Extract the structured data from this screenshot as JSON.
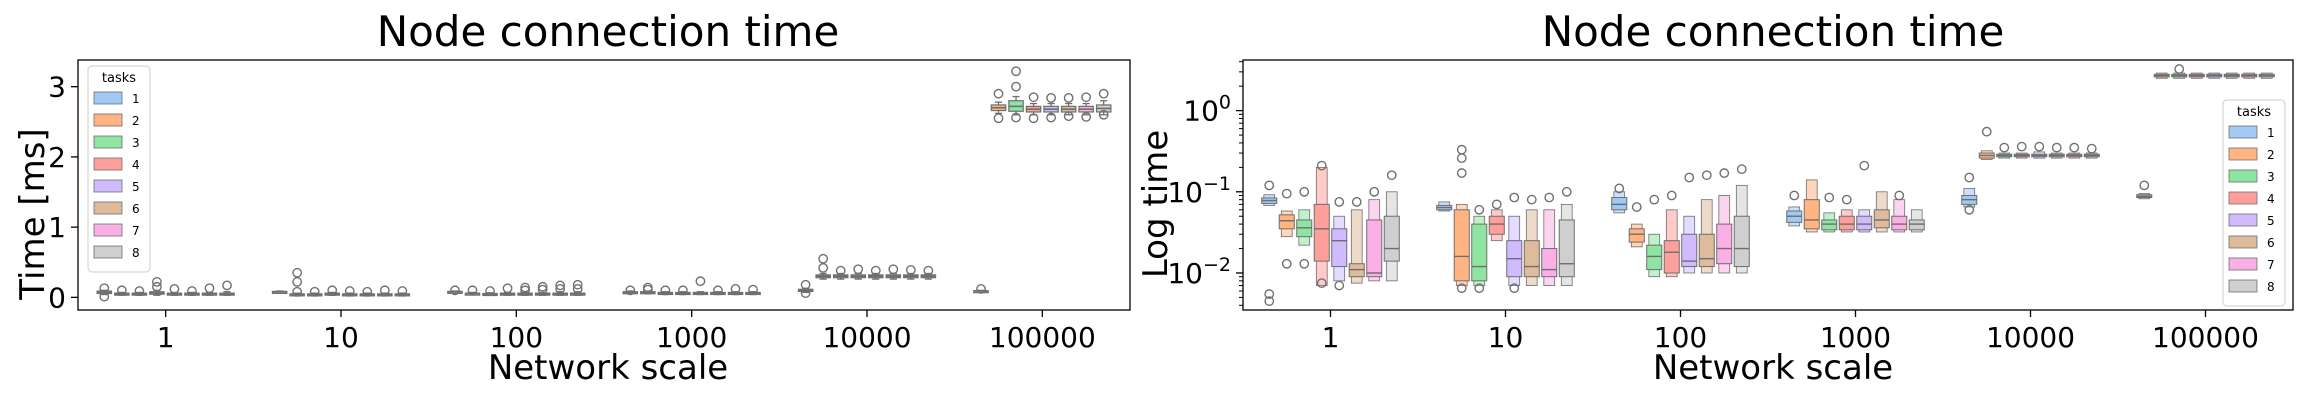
{
  "colors": {
    "1": "#a1c9f4",
    "2": "#ffb482",
    "3": "#8de5a1",
    "4": "#ff9f9b",
    "5": "#d0bbff",
    "6": "#debb9b",
    "7": "#fab0e4",
    "8": "#cfcfcf",
    "median": "#6e6e6e",
    "flier": "#707070",
    "axis": "#000000"
  },
  "chart_data": [
    {
      "type": "boxplot",
      "title": "Node connection time",
      "xlabel": "Network scale",
      "ylabel": "Time [ms]",
      "yscale": "linear",
      "ylim": [
        -0.18,
        3.38
      ],
      "yticks": [
        0,
        1,
        2,
        3
      ],
      "ytick_labels": [
        "0",
        "1",
        "2",
        "3"
      ],
      "categories": [
        "1",
        "10",
        "100",
        "1000",
        "10000",
        "100000"
      ],
      "legend": {
        "title": "tasks",
        "entries": [
          "1",
          "2",
          "3",
          "4",
          "5",
          "6",
          "7",
          "8"
        ],
        "placement": "upper left"
      },
      "boxes": [
        [
          [
            0.04,
            0.055,
            0.07,
            0.09,
            0.1,
            [
              0.13,
              0.01
            ]
          ],
          [
            0.03,
            0.04,
            0.05,
            0.06,
            0.07,
            [
              0.1
            ]
          ],
          [
            0.03,
            0.04,
            0.05,
            0.06,
            0.07,
            [
              0.09
            ]
          ],
          [
            0.03,
            0.045,
            0.06,
            0.08,
            0.1,
            [
              0.22,
              0.15
            ]
          ],
          [
            0.03,
            0.04,
            0.05,
            0.06,
            0.07,
            [
              0.12
            ]
          ],
          [
            0.03,
            0.04,
            0.05,
            0.06,
            0.07,
            [
              0.09
            ]
          ],
          [
            0.03,
            0.04,
            0.05,
            0.06,
            0.07,
            [
              0.13
            ]
          ],
          [
            0.03,
            0.04,
            0.05,
            0.06,
            0.08,
            [
              0.17
            ]
          ]
        ],
        [
          [
            0.07,
            0.075,
            0.08,
            0.085,
            0.09,
            []
          ],
          [
            0.02,
            0.03,
            0.04,
            0.05,
            0.06,
            [
              0.35,
              0.22,
              0.08
            ]
          ],
          [
            0.02,
            0.03,
            0.04,
            0.05,
            0.06,
            [
              0.08
            ]
          ],
          [
            0.03,
            0.04,
            0.05,
            0.06,
            0.07,
            [
              0.1
            ]
          ],
          [
            0.02,
            0.03,
            0.04,
            0.05,
            0.06,
            [
              0.09
            ]
          ],
          [
            0.02,
            0.03,
            0.04,
            0.05,
            0.06,
            [
              0.08
            ]
          ],
          [
            0.02,
            0.03,
            0.04,
            0.05,
            0.06,
            [
              0.1
            ]
          ],
          [
            0.02,
            0.03,
            0.04,
            0.05,
            0.06,
            [
              0.09
            ]
          ]
        ],
        [
          [
            0.07,
            0.075,
            0.08,
            0.085,
            0.09,
            [
              0.1
            ]
          ],
          [
            0.04,
            0.05,
            0.055,
            0.06,
            0.07,
            [
              0.1
            ]
          ],
          [
            0.03,
            0.04,
            0.045,
            0.055,
            0.065,
            [
              0.09
            ]
          ],
          [
            0.03,
            0.04,
            0.045,
            0.06,
            0.07,
            [
              0.13
            ]
          ],
          [
            0.03,
            0.04,
            0.045,
            0.06,
            0.07,
            [
              0.14,
              0.1
            ]
          ],
          [
            0.03,
            0.04,
            0.045,
            0.06,
            0.07,
            [
              0.15,
              0.11
            ]
          ],
          [
            0.03,
            0.04,
            0.05,
            0.06,
            0.08,
            [
              0.17,
              0.12
            ]
          ],
          [
            0.03,
            0.04,
            0.05,
            0.06,
            0.08,
            [
              0.18,
              0.12
            ]
          ]
        ],
        [
          [
            0.05,
            0.06,
            0.07,
            0.08,
            0.09,
            [
              0.1
            ]
          ],
          [
            0.05,
            0.06,
            0.07,
            0.08,
            0.09,
            [
              0.14,
              0.11
            ]
          ],
          [
            0.04,
            0.05,
            0.06,
            0.07,
            0.08,
            [
              0.1
            ]
          ],
          [
            0.04,
            0.05,
            0.06,
            0.07,
            0.08,
            [
              0.1
            ]
          ],
          [
            0.04,
            0.05,
            0.06,
            0.07,
            0.08,
            [
              0.23
            ]
          ],
          [
            0.04,
            0.05,
            0.06,
            0.07,
            0.08,
            [
              0.1
            ]
          ],
          [
            0.04,
            0.05,
            0.06,
            0.07,
            0.08,
            [
              0.12
            ]
          ],
          [
            0.04,
            0.05,
            0.06,
            0.07,
            0.08,
            [
              0.11
            ]
          ]
        ],
        [
          [
            0.07,
            0.085,
            0.1,
            0.115,
            0.13,
            [
              0.18,
              0.06
            ]
          ],
          [
            0.26,
            0.28,
            0.3,
            0.32,
            0.34,
            [
              0.55,
              0.42
            ]
          ],
          [
            0.26,
            0.28,
            0.3,
            0.32,
            0.34,
            [
              0.38
            ]
          ],
          [
            0.26,
            0.28,
            0.3,
            0.32,
            0.34,
            [
              0.4
            ]
          ],
          [
            0.26,
            0.28,
            0.3,
            0.32,
            0.34,
            [
              0.38
            ]
          ],
          [
            0.26,
            0.28,
            0.3,
            0.32,
            0.34,
            [
              0.4
            ]
          ],
          [
            0.26,
            0.28,
            0.3,
            0.32,
            0.34,
            [
              0.39
            ]
          ],
          [
            0.26,
            0.28,
            0.3,
            0.32,
            0.34,
            [
              0.38
            ]
          ]
        ],
        [
          [
            0.08,
            0.085,
            0.09,
            0.095,
            0.1,
            [
              0.12
            ]
          ],
          [
            2.62,
            2.66,
            2.7,
            2.74,
            2.78,
            [
              2.9,
              2.55
            ]
          ],
          [
            2.6,
            2.65,
            2.72,
            2.8,
            2.86,
            [
              3.22,
              3.0,
              2.56
            ]
          ],
          [
            2.6,
            2.64,
            2.68,
            2.72,
            2.76,
            [
              2.85,
              2.55
            ]
          ],
          [
            2.6,
            2.64,
            2.68,
            2.72,
            2.76,
            [
              2.84,
              2.56
            ]
          ],
          [
            2.6,
            2.64,
            2.68,
            2.72,
            2.76,
            [
              2.84,
              2.58
            ]
          ],
          [
            2.6,
            2.64,
            2.68,
            2.72,
            2.76,
            [
              2.85,
              2.57
            ]
          ],
          [
            2.6,
            2.64,
            2.69,
            2.74,
            2.8,
            [
              2.9,
              2.6
            ]
          ]
        ]
      ]
    },
    {
      "type": "boxenplot",
      "title": "Node connection time",
      "xlabel": "Network scale",
      "ylabel": "Log time",
      "yscale": "log",
      "ylim": [
        0.0035,
        4.2
      ],
      "yticks": [
        0.01,
        0.1,
        1
      ],
      "ytick_labels": [
        "10−2",
        "10−1",
        "10⁰"
      ],
      "ytick_base": [
        "10",
        "10",
        "10"
      ],
      "ytick_exp": [
        "−2",
        "−1",
        "0"
      ],
      "categories": [
        "1",
        "10",
        "100",
        "1000",
        "10000",
        "100000"
      ],
      "legend": {
        "title": "tasks",
        "entries": [
          "1",
          "2",
          "3",
          "4",
          "5",
          "6",
          "7",
          "8"
        ],
        "placement": "center right"
      },
      "boxes": [
        [
          [
            0.068,
            0.072,
            0.078,
            0.084,
            0.092,
            [
              0.12,
              0.0055,
              0.0045
            ]
          ],
          [
            0.028,
            0.035,
            0.044,
            0.052,
            0.058,
            [
              0.095,
              0.013
            ]
          ],
          [
            0.022,
            0.028,
            0.036,
            0.045,
            0.06,
            [
              0.1,
              0.013
            ]
          ],
          [
            0.007,
            0.014,
            0.035,
            0.07,
            0.2,
            [
              0.21,
              0.0075
            ]
          ],
          [
            0.008,
            0.012,
            0.025,
            0.035,
            0.05,
            [
              0.075,
              0.007
            ]
          ],
          [
            0.0075,
            0.009,
            0.011,
            0.013,
            0.06,
            [
              0.075
            ]
          ],
          [
            0.008,
            0.009,
            0.01,
            0.045,
            0.08,
            [
              0.1
            ]
          ],
          [
            0.008,
            0.014,
            0.02,
            0.05,
            0.1,
            [
              0.16
            ]
          ]
        ],
        [
          [
            0.058,
            0.06,
            0.064,
            0.068,
            0.075,
            []
          ],
          [
            0.007,
            0.008,
            0.016,
            0.06,
            0.07,
            [
              0.33,
              0.26,
              0.17,
              0.0065
            ]
          ],
          [
            0.007,
            0.008,
            0.012,
            0.04,
            0.05,
            [
              0.06,
              0.0065
            ]
          ],
          [
            0.025,
            0.03,
            0.04,
            0.05,
            0.06,
            [
              0.07
            ]
          ],
          [
            0.007,
            0.009,
            0.015,
            0.025,
            0.05,
            [
              0.085,
              0.0065
            ]
          ],
          [
            0.007,
            0.009,
            0.012,
            0.025,
            0.06,
            [
              0.08
            ]
          ],
          [
            0.007,
            0.009,
            0.011,
            0.02,
            0.06,
            [
              0.085
            ]
          ],
          [
            0.007,
            0.009,
            0.013,
            0.045,
            0.07,
            [
              0.1
            ]
          ]
        ],
        [
          [
            0.055,
            0.06,
            0.07,
            0.085,
            0.1,
            [
              0.11
            ]
          ],
          [
            0.021,
            0.024,
            0.03,
            0.035,
            0.04,
            [
              0.065
            ]
          ],
          [
            0.009,
            0.011,
            0.016,
            0.022,
            0.03,
            [
              0.08
            ]
          ],
          [
            0.009,
            0.01,
            0.018,
            0.025,
            0.06,
            [
              0.09
            ]
          ],
          [
            0.01,
            0.012,
            0.014,
            0.03,
            0.05,
            [
              0.15
            ]
          ],
          [
            0.01,
            0.012,
            0.015,
            0.03,
            0.08,
            [
              0.16
            ]
          ],
          [
            0.01,
            0.013,
            0.02,
            0.04,
            0.09,
            [
              0.17
            ]
          ],
          [
            0.01,
            0.012,
            0.02,
            0.05,
            0.12,
            [
              0.19
            ]
          ]
        ],
        [
          [
            0.038,
            0.042,
            0.05,
            0.058,
            0.065,
            [
              0.09
            ]
          ],
          [
            0.032,
            0.035,
            0.045,
            0.08,
            0.14,
            []
          ],
          [
            0.032,
            0.034,
            0.04,
            0.045,
            0.055,
            [
              0.085
            ]
          ],
          [
            0.032,
            0.034,
            0.04,
            0.05,
            0.06,
            [
              0.08
            ]
          ],
          [
            0.032,
            0.034,
            0.04,
            0.05,
            0.06,
            [
              0.21
            ]
          ],
          [
            0.032,
            0.036,
            0.045,
            0.06,
            0.1,
            []
          ],
          [
            0.032,
            0.034,
            0.04,
            0.05,
            0.08,
            [
              0.09
            ]
          ],
          [
            0.032,
            0.034,
            0.04,
            0.045,
            0.06,
            []
          ]
        ],
        [
          [
            0.065,
            0.07,
            0.08,
            0.09,
            0.11,
            [
              0.15,
              0.06
            ]
          ],
          [
            0.25,
            0.26,
            0.28,
            0.3,
            0.32,
            [
              0.55
            ]
          ],
          [
            0.26,
            0.27,
            0.28,
            0.29,
            0.3,
            [
              0.35
            ]
          ],
          [
            0.26,
            0.27,
            0.28,
            0.29,
            0.3,
            [
              0.36
            ]
          ],
          [
            0.26,
            0.27,
            0.28,
            0.29,
            0.31,
            [
              0.36
            ]
          ],
          [
            0.26,
            0.27,
            0.28,
            0.29,
            0.3,
            [
              0.35
            ]
          ],
          [
            0.26,
            0.27,
            0.28,
            0.29,
            0.3,
            [
              0.35
            ]
          ],
          [
            0.26,
            0.27,
            0.28,
            0.29,
            0.3,
            [
              0.34
            ]
          ]
        ],
        [
          [
            0.082,
            0.085,
            0.088,
            0.092,
            0.095,
            [
              0.12
            ]
          ],
          [
            2.5,
            2.6,
            2.7,
            2.8,
            2.9,
            []
          ],
          [
            2.5,
            2.6,
            2.7,
            2.8,
            2.9,
            [
              3.25
            ]
          ],
          [
            2.5,
            2.6,
            2.7,
            2.8,
            2.9,
            []
          ],
          [
            2.5,
            2.6,
            2.7,
            2.8,
            2.9,
            []
          ],
          [
            2.5,
            2.6,
            2.7,
            2.8,
            2.9,
            []
          ],
          [
            2.5,
            2.6,
            2.7,
            2.8,
            2.9,
            []
          ],
          [
            2.5,
            2.6,
            2.7,
            2.8,
            2.9,
            []
          ]
        ]
      ]
    }
  ]
}
